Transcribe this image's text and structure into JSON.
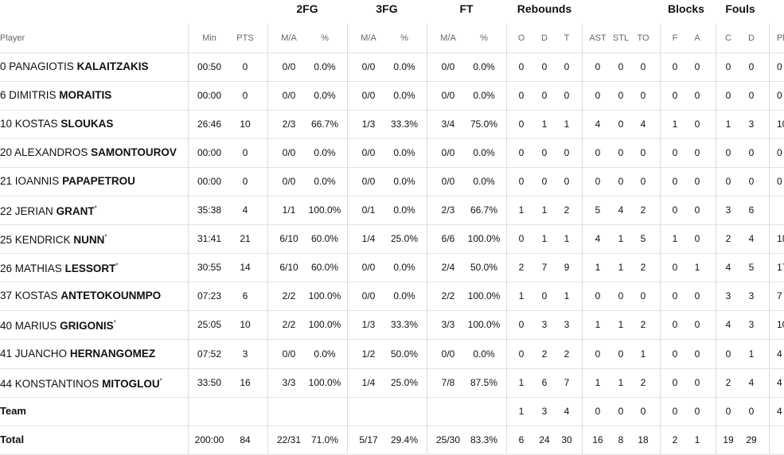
{
  "table": {
    "groups": [
      "2FG",
      "3FG",
      "FT",
      "Rebounds",
      "Blocks",
      "Fouls"
    ],
    "player_header": "Player",
    "columns": [
      "Min",
      "PTS",
      "M/A",
      "%",
      "M/A",
      "%",
      "M/A",
      "%",
      "O",
      "D",
      "T",
      "AST",
      "STL",
      "TO",
      "F",
      "A",
      "C",
      "D",
      "Pl"
    ],
    "players": [
      {
        "number": "0",
        "first": "PANAGIOTIS",
        "last": "KALAITZAKIS",
        "stats": [
          "00:50",
          "0",
          "0/0",
          "0.0%",
          "0/0",
          "0.0%",
          "0/0",
          "0.0%",
          "0",
          "0",
          "0",
          "0",
          "0",
          "0",
          "0",
          "0",
          "0",
          "0",
          "0"
        ]
      },
      {
        "number": "6",
        "first": "DIMITRIS",
        "last": "MORAITIS",
        "stats": [
          "00:00",
          "0",
          "0/0",
          "0.0%",
          "0/0",
          "0.0%",
          "0/0",
          "0.0%",
          "0",
          "0",
          "0",
          "0",
          "0",
          "0",
          "0",
          "0",
          "0",
          "0",
          "0"
        ]
      },
      {
        "number": "10",
        "first": "KOSTAS",
        "last": "SLOUKAS",
        "stats": [
          "26:46",
          "10",
          "2/3",
          "66.7%",
          "1/3",
          "33.3%",
          "3/4",
          "75.0%",
          "0",
          "1",
          "1",
          "4",
          "0",
          "4",
          "1",
          "0",
          "1",
          "3",
          "10"
        ]
      },
      {
        "number": "20",
        "first": "ALEXANDROS",
        "last": "SAMONTOUROV",
        "stats": [
          "00:00",
          "0",
          "0/0",
          "0.0%",
          "0/0",
          "0.0%",
          "0/0",
          "0.0%",
          "0",
          "0",
          "0",
          "0",
          "0",
          "0",
          "0",
          "0",
          "0",
          "0",
          "0"
        ]
      },
      {
        "number": "21",
        "first": "IOANNIS",
        "last": "PAPAPETROU",
        "stats": [
          "00:00",
          "0",
          "0/0",
          "0.0%",
          "0/0",
          "0.0%",
          "0/0",
          "0.0%",
          "0",
          "0",
          "0",
          "0",
          "0",
          "0",
          "0",
          "0",
          "0",
          "0",
          "0"
        ]
      },
      {
        "number": "22",
        "first": "JERIAN",
        "last": "GRANT",
        "mark": "*",
        "stats": [
          "35:38",
          "4",
          "1/1",
          "100.0%",
          "0/1",
          "0.0%",
          "2/3",
          "66.7%",
          "1",
          "1",
          "2",
          "5",
          "4",
          "2",
          "0",
          "0",
          "3",
          "6",
          null
        ]
      },
      {
        "number": "25",
        "first": "KENDRICK",
        "last": "NUNN",
        "mark": "*",
        "stats": [
          "31:41",
          "21",
          "6/10",
          "60.0%",
          "1/4",
          "25.0%",
          "6/6",
          "100.0%",
          "0",
          "1",
          "1",
          "4",
          "1",
          "5",
          "1",
          "0",
          "2",
          "4",
          "18"
        ]
      },
      {
        "number": "26",
        "first": "MATHIAS",
        "last": "LESSORT",
        "mark": "*",
        "stats": [
          "30:55",
          "14",
          "6/10",
          "60.0%",
          "0/0",
          "0.0%",
          "2/4",
          "50.0%",
          "2",
          "7",
          "9",
          "1",
          "1",
          "2",
          "0",
          "1",
          "4",
          "5",
          "17"
        ]
      },
      {
        "number": "37",
        "first": "KOSTAS",
        "last": "ANTETOKOUNMPO",
        "stats": [
          "07:23",
          "6",
          "2/2",
          "100.0%",
          "0/0",
          "0.0%",
          "2/2",
          "100.0%",
          "1",
          "0",
          "1",
          "0",
          "0",
          "0",
          "0",
          "0",
          "3",
          "3",
          "7"
        ]
      },
      {
        "number": "40",
        "first": "MARIUS",
        "last": "GRIGONIS",
        "mark": "*",
        "stats": [
          "25:05",
          "10",
          "2/2",
          "100.0%",
          "1/3",
          "33.3%",
          "3/3",
          "100.0%",
          "0",
          "3",
          "3",
          "1",
          "1",
          "2",
          "0",
          "0",
          "4",
          "3",
          "10"
        ]
      },
      {
        "number": "41",
        "first": "JUANCHO",
        "last": "HERNANGOMEZ",
        "stats": [
          "07:52",
          "3",
          "0/0",
          "0.0%",
          "1/2",
          "50.0%",
          "0/0",
          "0.0%",
          "0",
          "2",
          "2",
          "0",
          "0",
          "1",
          "0",
          "0",
          "0",
          "1",
          "4"
        ]
      },
      {
        "number": "44",
        "first": "KONSTANTINOS",
        "last": "MITOGLOU",
        "mark": "*",
        "stats": [
          "33:50",
          "16",
          "3/3",
          "100.0%",
          "1/4",
          "25.0%",
          "7/8",
          "87.5%",
          "1",
          "6",
          "7",
          "1",
          "1",
          "2",
          "0",
          "0",
          "2",
          "4",
          "4"
        ]
      }
    ],
    "team": {
      "label": "Team",
      "stats": [
        null,
        null,
        null,
        null,
        null,
        null,
        null,
        null,
        "1",
        "3",
        "4",
        "0",
        "0",
        "0",
        "0",
        "0",
        "0",
        "0",
        "4"
      ]
    },
    "total": {
      "label": "Total",
      "stats": [
        "200:00",
        "84",
        "22/31",
        "71.0%",
        "5/17",
        "29.4%",
        "25/30",
        "83.3%",
        "6",
        "24",
        "30",
        "16",
        "8",
        "18",
        "2",
        "1",
        "19",
        "29",
        null
      ]
    }
  }
}
